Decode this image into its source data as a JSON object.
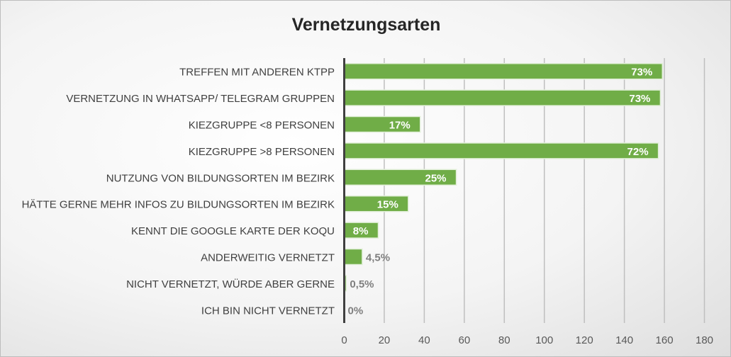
{
  "chart_data": {
    "type": "bar",
    "orientation": "horizontal",
    "title": "Vernetzungsarten",
    "categories": [
      "TREFFEN MIT ANDEREN KTPP",
      "VERNETZUNG IN WHATSAPP/ TELEGRAM GRUPPEN",
      "KIEZGRUPPE <8 PERSONEN",
      "KIEZGRUPPE >8 PERSONEN",
      "NUTZUNG VON BILDUNGSORTEN IM BEZIRK",
      "HÄTTE GERNE MEHR INFOS ZU BILDUNGSORTEN IM BEZIRK",
      "KENNT DIE GOOGLE KARTE DER KOQU",
      "ANDERWEITIG VERNETZT",
      "NICHT VERNETZT, WÜRDE ABER GERNE",
      "ICH BIN NICHT VERNETZT"
    ],
    "values": [
      159,
      158,
      38,
      157,
      56,
      32,
      17,
      9,
      1,
      0
    ],
    "data_labels": [
      "73%",
      "73%",
      "17%",
      "72%",
      "25%",
      "15%",
      "8%",
      "4,5%",
      "0,5%",
      "0%"
    ],
    "xlim": [
      0,
      180
    ],
    "xticks": [
      "0",
      "20",
      "40",
      "60",
      "80",
      "100",
      "120",
      "140",
      "160",
      "180"
    ],
    "grid": true,
    "bar_color": "#70ad47",
    "label_inside_color": "#ffffff",
    "label_outside_color": "#7f7f7f"
  }
}
